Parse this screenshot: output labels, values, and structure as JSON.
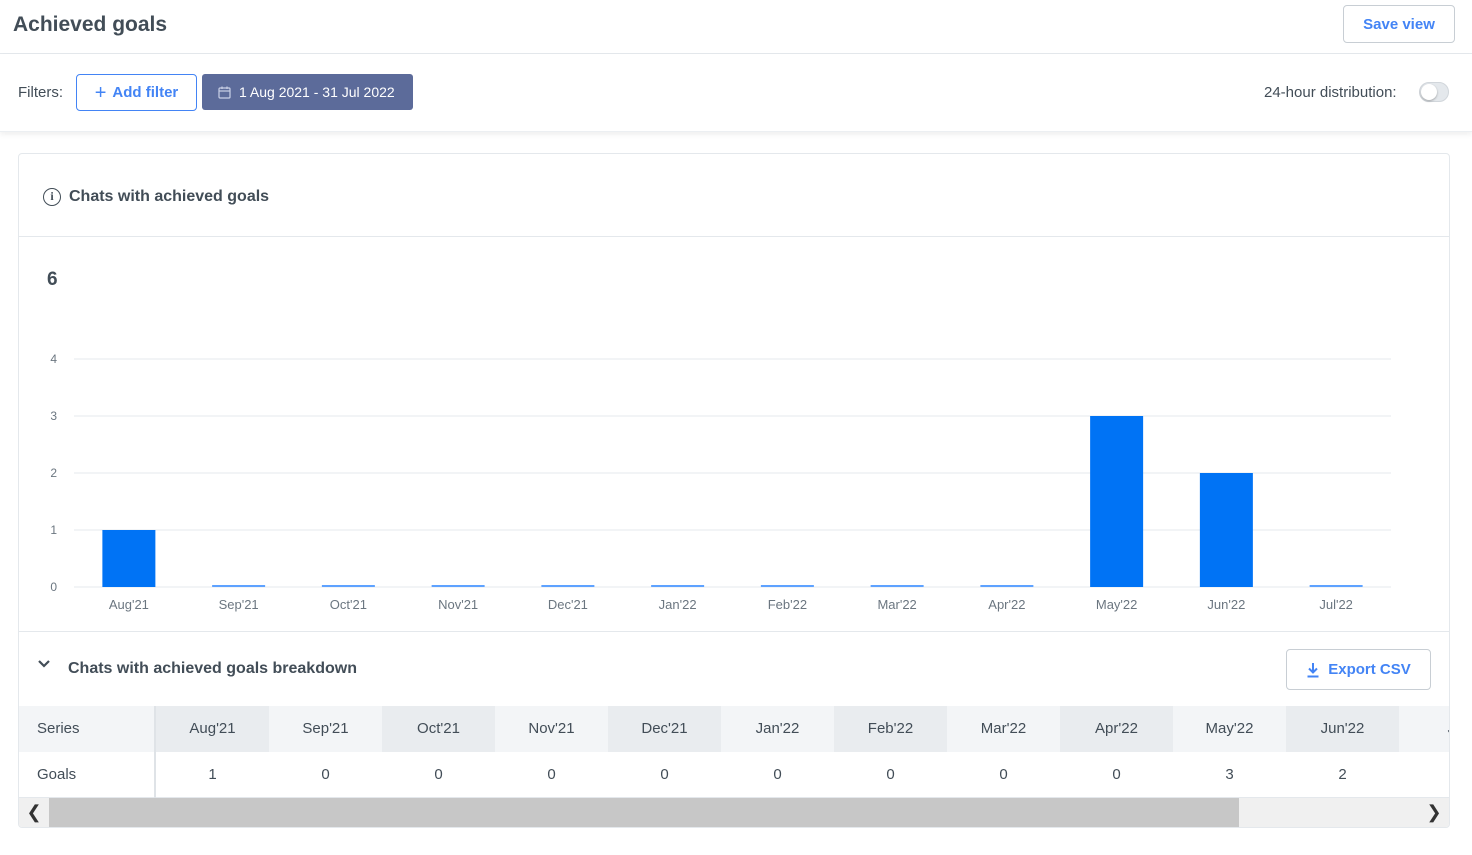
{
  "page": {
    "title": "Achieved goals",
    "save_view_label": "Save view"
  },
  "filters": {
    "label": "Filters:",
    "add_filter_label": "Add filter",
    "date_range": "1 Aug 2021 - 31 Jul 2022",
    "distribution_label": "24-hour distribution:",
    "distribution_on": false
  },
  "card": {
    "title": "Chats with achieved goals",
    "total": "6",
    "breakdown_title": "Chats with achieved goals breakdown",
    "export_label": "Export CSV"
  },
  "chart_data": {
    "type": "bar",
    "title": "",
    "xlabel": "",
    "ylabel": "",
    "categories": [
      "Aug'21",
      "Sep'21",
      "Oct'21",
      "Nov'21",
      "Dec'21",
      "Jan'22",
      "Feb'22",
      "Mar'22",
      "Apr'22",
      "May'22",
      "Jun'22",
      "Jul'22"
    ],
    "values": [
      1,
      0,
      0,
      0,
      0,
      0,
      0,
      0,
      0,
      3,
      2,
      0
    ],
    "yticks": [
      0,
      1,
      2,
      3,
      4
    ],
    "ylim": [
      0,
      4
    ],
    "grid": true,
    "bar_color": "#0073f5"
  },
  "table": {
    "series_header": "Series",
    "columns": [
      "Aug'21",
      "Sep'21",
      "Oct'21",
      "Nov'21",
      "Dec'21",
      "Jan'22",
      "Feb'22",
      "Mar'22",
      "Apr'22",
      "May'22",
      "Jun'22",
      "Ju"
    ],
    "rows": [
      {
        "label": "Goals",
        "values": [
          "1",
          "0",
          "0",
          "0",
          "0",
          "0",
          "0",
          "0",
          "0",
          "3",
          "2",
          ""
        ]
      }
    ]
  },
  "colors": {
    "accent": "#4384f5",
    "date_button": "#5c6b9a",
    "bar": "#0073f5"
  }
}
